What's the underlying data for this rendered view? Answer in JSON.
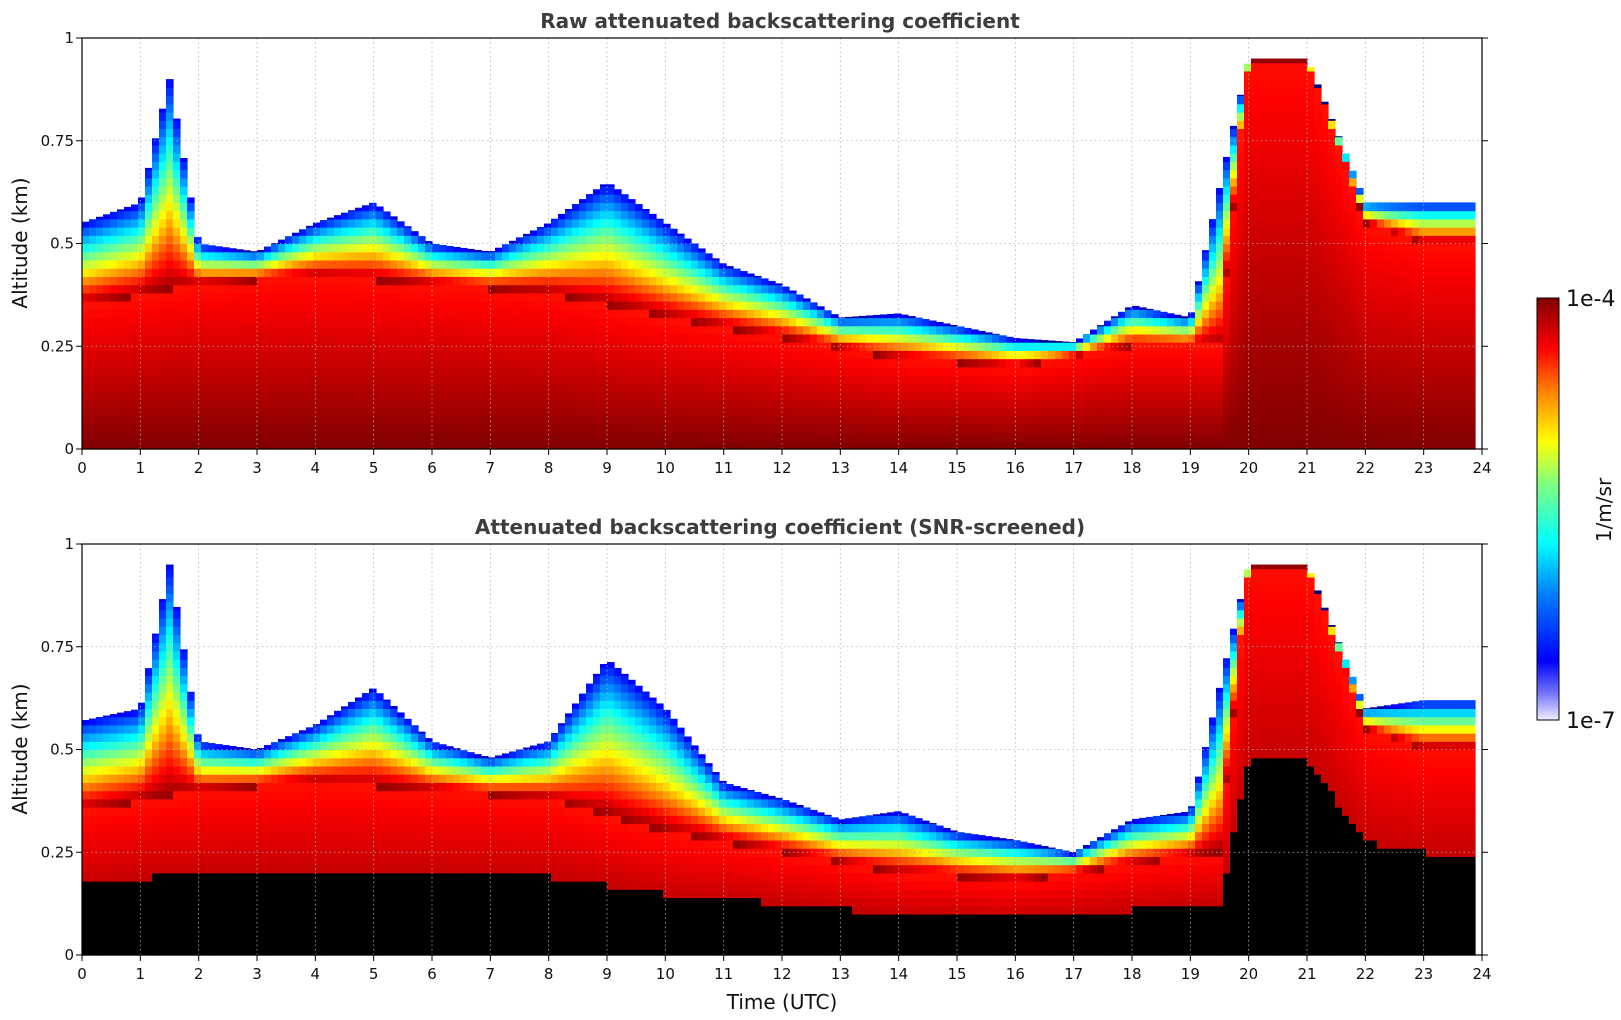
{
  "chart_data": {
    "type": "heatmap",
    "colorbar": {
      "min_label": "1e-7",
      "max_label": "1e-4",
      "label": "1/m/sr",
      "colormap": "jet",
      "scale": "log",
      "min": 1e-07,
      "max": 0.0001
    },
    "x_ticks": [
      "0",
      "1",
      "2",
      "3",
      "4",
      "5",
      "6",
      "7",
      "8",
      "9",
      "10",
      "11",
      "12",
      "13",
      "14",
      "15",
      "16",
      "17",
      "18",
      "19",
      "20",
      "21",
      "22",
      "23",
      "24"
    ],
    "y_ticks": [
      "0",
      "0.25",
      "0.5",
      "0.75",
      "1"
    ],
    "xlim": [
      0,
      24
    ],
    "ylim": [
      0,
      1
    ],
    "grid": true,
    "panels": [
      {
        "title": "Raw attenuated backscattering coefficient",
        "ylabel": "Altitude (km)",
        "xlabel": "",
        "screened": false,
        "approx_layer_top_km": {
          "time_utc": [
            0,
            1,
            1.5,
            2,
            3,
            4,
            5,
            6,
            7,
            8,
            9,
            10,
            11,
            12,
            13,
            14,
            15,
            16,
            17,
            18,
            19,
            20,
            21,
            22,
            23,
            23.8
          ],
          "top_km": [
            0.55,
            0.6,
            0.9,
            0.5,
            0.48,
            0.55,
            0.6,
            0.5,
            0.48,
            0.55,
            0.65,
            0.55,
            0.45,
            0.4,
            0.32,
            0.33,
            0.3,
            0.27,
            0.26,
            0.35,
            0.32,
            0.95,
            0.95,
            0.6,
            0.6,
            0.6
          ]
        },
        "approx_dense_core_top_km": {
          "time_utc": [
            0,
            2,
            4,
            6,
            8,
            10,
            12,
            14,
            16,
            18,
            19.5,
            20,
            21,
            22,
            23,
            23.8
          ],
          "top_km": [
            0.35,
            0.4,
            0.42,
            0.4,
            0.38,
            0.32,
            0.27,
            0.22,
            0.2,
            0.25,
            0.25,
            0.95,
            0.95,
            0.55,
            0.5,
            0.5
          ]
        }
      },
      {
        "title": "Attenuated backscattering coefficient (SNR-screened)",
        "ylabel": "Altitude (km)",
        "xlabel": "Time (UTC)",
        "screened": true,
        "approx_layer_top_km": {
          "time_utc": [
            0,
            1,
            1.5,
            2,
            3,
            4,
            5,
            6,
            7,
            8,
            9,
            10,
            11,
            12,
            13,
            14,
            15,
            16,
            17,
            18,
            19,
            20,
            21,
            22,
            23,
            23.8
          ],
          "top_km": [
            0.57,
            0.6,
            0.95,
            0.52,
            0.5,
            0.56,
            0.65,
            0.52,
            0.48,
            0.52,
            0.72,
            0.6,
            0.42,
            0.38,
            0.33,
            0.35,
            0.3,
            0.28,
            0.25,
            0.33,
            0.35,
            0.95,
            0.95,
            0.6,
            0.62,
            0.62
          ]
        },
        "approx_dense_core_top_km": {
          "time_utc": [
            0,
            2,
            4,
            6,
            8,
            10,
            12,
            14,
            16,
            18,
            19.5,
            20,
            21,
            22,
            23,
            23.8
          ],
          "top_km": [
            0.35,
            0.4,
            0.42,
            0.4,
            0.38,
            0.3,
            0.25,
            0.2,
            0.18,
            0.22,
            0.25,
            0.95,
            0.95,
            0.55,
            0.5,
            0.5
          ]
        }
      }
    ]
  }
}
